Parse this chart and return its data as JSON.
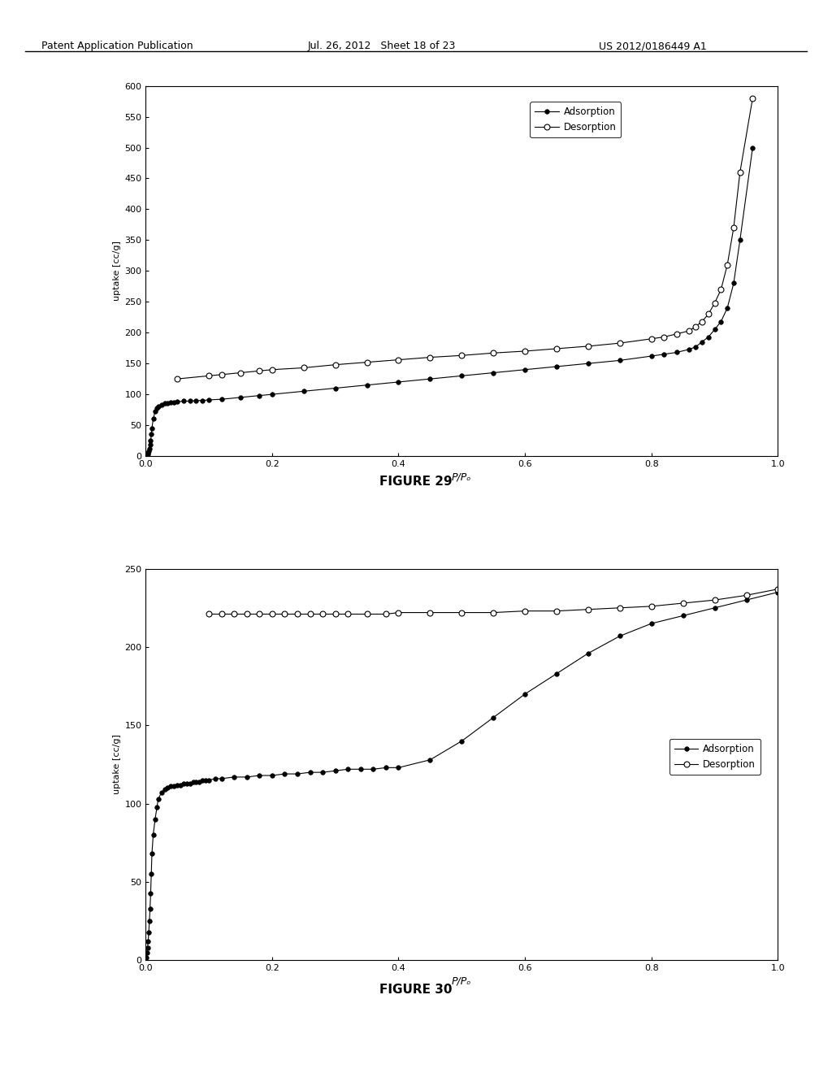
{
  "fig29": {
    "title": "FIGURE 29",
    "xlabel": "P/Pₒ",
    "ylabel": "uptake [cc/g]",
    "ylim": [
      0,
      600
    ],
    "yticks": [
      0,
      50,
      100,
      150,
      200,
      250,
      300,
      350,
      400,
      450,
      500,
      550,
      600
    ],
    "xlim": [
      0.0,
      1.0
    ],
    "xticks": [
      0.0,
      0.2,
      0.4,
      0.6,
      0.8,
      1.0
    ],
    "adsorption_x": [
      0.001,
      0.002,
      0.003,
      0.004,
      0.005,
      0.006,
      0.007,
      0.008,
      0.009,
      0.01,
      0.012,
      0.015,
      0.018,
      0.02,
      0.025,
      0.03,
      0.035,
      0.04,
      0.045,
      0.05,
      0.06,
      0.07,
      0.08,
      0.09,
      0.1,
      0.12,
      0.15,
      0.18,
      0.2,
      0.25,
      0.3,
      0.35,
      0.4,
      0.45,
      0.5,
      0.55,
      0.6,
      0.65,
      0.7,
      0.75,
      0.8,
      0.82,
      0.84,
      0.86,
      0.87,
      0.88,
      0.89,
      0.9,
      0.91,
      0.92,
      0.93,
      0.94,
      0.96
    ],
    "adsorption_y": [
      0,
      1,
      3,
      5,
      8,
      12,
      18,
      25,
      35,
      45,
      60,
      72,
      78,
      80,
      83,
      85,
      86,
      87,
      87,
      88,
      89,
      89,
      90,
      90,
      91,
      92,
      95,
      98,
      100,
      105,
      110,
      115,
      120,
      125,
      130,
      135,
      140,
      145,
      150,
      155,
      162,
      165,
      168,
      173,
      177,
      185,
      193,
      205,
      218,
      240,
      280,
      350,
      500
    ],
    "desorption_x": [
      0.05,
      0.1,
      0.12,
      0.15,
      0.18,
      0.2,
      0.25,
      0.3,
      0.35,
      0.4,
      0.45,
      0.5,
      0.55,
      0.6,
      0.65,
      0.7,
      0.75,
      0.8,
      0.82,
      0.84,
      0.86,
      0.87,
      0.88,
      0.89,
      0.9,
      0.91,
      0.92,
      0.93,
      0.94,
      0.96
    ],
    "desorption_y": [
      125,
      130,
      132,
      135,
      138,
      140,
      143,
      148,
      152,
      156,
      160,
      163,
      167,
      170,
      174,
      178,
      183,
      190,
      193,
      198,
      203,
      210,
      218,
      230,
      248,
      270,
      310,
      370,
      460,
      580
    ],
    "legend_adsorption": "Adsorption",
    "legend_desorption": "Desorption"
  },
  "fig30": {
    "title": "FIGURE 30",
    "xlabel": "P/Pₒ",
    "ylabel": "uptake [cc/g]",
    "ylim": [
      0,
      250
    ],
    "yticks": [
      0,
      50,
      100,
      150,
      200,
      250
    ],
    "xlim": [
      0.0,
      1.0
    ],
    "xticks": [
      0.0,
      0.2,
      0.4,
      0.6,
      0.8,
      1.0
    ],
    "adsorption_x": [
      0.001,
      0.002,
      0.003,
      0.004,
      0.005,
      0.006,
      0.007,
      0.008,
      0.009,
      0.01,
      0.012,
      0.015,
      0.018,
      0.02,
      0.025,
      0.03,
      0.035,
      0.04,
      0.045,
      0.05,
      0.055,
      0.06,
      0.065,
      0.07,
      0.075,
      0.08,
      0.085,
      0.09,
      0.095,
      0.1,
      0.11,
      0.12,
      0.14,
      0.16,
      0.18,
      0.2,
      0.22,
      0.24,
      0.26,
      0.28,
      0.3,
      0.32,
      0.34,
      0.36,
      0.38,
      0.4,
      0.45,
      0.5,
      0.55,
      0.6,
      0.65,
      0.7,
      0.75,
      0.8,
      0.85,
      0.9,
      0.95,
      1.0
    ],
    "adsorption_y": [
      2,
      5,
      8,
      12,
      18,
      25,
      33,
      43,
      55,
      68,
      80,
      90,
      98,
      103,
      107,
      109,
      110,
      111,
      111,
      112,
      112,
      113,
      113,
      113,
      114,
      114,
      114,
      115,
      115,
      115,
      116,
      116,
      117,
      117,
      118,
      118,
      119,
      119,
      120,
      120,
      121,
      122,
      122,
      122,
      123,
      123,
      128,
      140,
      155,
      170,
      183,
      196,
      207,
      215,
      220,
      225,
      230,
      235
    ],
    "desorption_x": [
      0.1,
      0.12,
      0.14,
      0.16,
      0.18,
      0.2,
      0.22,
      0.24,
      0.26,
      0.28,
      0.3,
      0.32,
      0.35,
      0.38,
      0.4,
      0.45,
      0.5,
      0.55,
      0.6,
      0.65,
      0.7,
      0.75,
      0.8,
      0.85,
      0.9,
      0.95,
      1.0
    ],
    "desorption_y": [
      221,
      221,
      221,
      221,
      221,
      221,
      221,
      221,
      221,
      221,
      221,
      221,
      221,
      221,
      222,
      222,
      222,
      222,
      223,
      223,
      224,
      225,
      226,
      228,
      230,
      233,
      237
    ],
    "legend_adsorption": "Adsorption",
    "legend_desorption": "Desorption"
  },
  "header_text": "Patent Application Publication",
  "header_date": "Jul. 26, 2012   Sheet 18 of 23",
  "header_patent": "US 2012/0186449 A1",
  "bg_color": "#ffffff",
  "plot_bg": "#ffffff",
  "line_color": "#000000"
}
